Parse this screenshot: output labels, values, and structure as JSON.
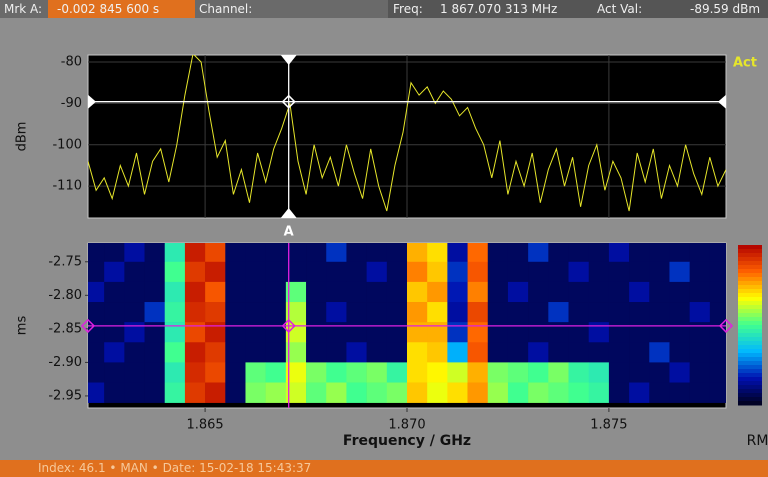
{
  "header": {
    "marker_label": "Mrk A:",
    "marker_time": "-0.002 845 600 s",
    "channel_label": "Channel:",
    "freq_label": "Freq:",
    "freq_value": "1 867.070 313 MHz",
    "act_val_label": "Act Val:",
    "act_val_value": "-89.59 dBm"
  },
  "footer": {
    "status": "Index: 46.1 • MAN • Date: 15-02-18 15:43:37"
  },
  "chart_data": [
    {
      "type": "line",
      "y_label": "dBm",
      "x": [
        1.8621,
        1.8623,
        1.8625,
        1.8627,
        1.8629,
        1.8631,
        1.8633,
        1.8635,
        1.8637,
        1.8639,
        1.8641,
        1.8643,
        1.8645,
        1.8647,
        1.8649,
        1.8651,
        1.8653,
        1.8655,
        1.8657,
        1.8659,
        1.8661,
        1.8663,
        1.8665,
        1.8667,
        1.8669,
        1.8671,
        1.8673,
        1.8675,
        1.8677,
        1.8679,
        1.8681,
        1.8683,
        1.8685,
        1.8687,
        1.8689,
        1.8691,
        1.8693,
        1.8695,
        1.8697,
        1.8699,
        1.8701,
        1.8703,
        1.8705,
        1.8707,
        1.8709,
        1.8711,
        1.8713,
        1.8715,
        1.8717,
        1.8719,
        1.8721,
        1.8723,
        1.8725,
        1.8727,
        1.8729,
        1.8731,
        1.8733,
        1.8735,
        1.8737,
        1.8739,
        1.8741,
        1.8743,
        1.8745,
        1.8747,
        1.8749,
        1.8751,
        1.8753,
        1.8755,
        1.8757,
        1.8759,
        1.8761,
        1.8763,
        1.8765,
        1.8767,
        1.8769,
        1.8771,
        1.8773,
        1.8775,
        1.8777,
        1.8779
      ],
      "series": [
        {
          "name": "Act",
          "color": "#e6e62a",
          "values": [
            -104,
            -111,
            -108,
            -113,
            -105,
            -110,
            -102,
            -112,
            -104,
            -101,
            -109,
            -100,
            -88,
            -78,
            -80,
            -92,
            -103,
            -99,
            -112,
            -106,
            -114,
            -102,
            -109,
            -101,
            -96,
            -90,
            -104,
            -112,
            -100,
            -108,
            -103,
            -110,
            -100,
            -107,
            -113,
            -101,
            -110,
            -116,
            -105,
            -97,
            -85,
            -88,
            -86,
            -90,
            -87,
            -89,
            -93,
            -91,
            -96,
            -100,
            -108,
            -99,
            -112,
            -104,
            -110,
            -102,
            -114,
            -106,
            -101,
            -110,
            -103,
            -115,
            -105,
            -100,
            -111,
            -104,
            -108,
            -116,
            -102,
            -109,
            -101,
            -113,
            -105,
            -110,
            -100,
            -107,
            -112,
            -103,
            -110,
            -106
          ]
        }
      ],
      "xlim": [
        1.8621,
        1.8779
      ],
      "xticks": [
        1.865,
        1.87,
        1.875
      ],
      "ylim": [
        -117.7,
        -78.3
      ],
      "yticks": [
        -80,
        -90,
        -100,
        -110
      ],
      "grid": true,
      "marker": {
        "label": "A",
        "x": 1.867070313,
        "y": -89.59,
        "color": "#ffffff"
      }
    },
    {
      "type": "heatmap",
      "y_label": "ms",
      "x_label": "Frequency / GHz",
      "colorbar_label": "RMS",
      "x_bins": [
        1.862,
        1.8625,
        1.863,
        1.8635,
        1.864,
        1.8645,
        1.865,
        1.8655,
        1.866,
        1.8665,
        1.867,
        1.8675,
        1.868,
        1.8685,
        1.869,
        1.8695,
        1.87,
        1.8705,
        1.871,
        1.8715,
        1.872,
        1.8725,
        1.873,
        1.8735,
        1.874,
        1.8745,
        1.875,
        1.8755,
        1.876,
        1.8765,
        1.877,
        1.8775,
        1.878
      ],
      "y_bins": [
        -2.72,
        -2.75,
        -2.78,
        -2.81,
        -2.84,
        -2.87,
        -2.9,
        -2.93,
        -2.96
      ],
      "values": [
        [
          -115,
          -115,
          -112,
          -115,
          -100,
          -80,
          -83,
          -115,
          -115,
          -115,
          -115,
          -115,
          -110,
          -115,
          -115,
          -115,
          -88,
          -90,
          -112,
          -85,
          -115,
          -115,
          -110,
          -115,
          -115,
          -115,
          -112,
          -115,
          -115,
          -115,
          -115,
          -115
        ],
        [
          -115,
          -112,
          -115,
          -115,
          -98,
          -82,
          -80,
          -115,
          -115,
          -115,
          -115,
          -115,
          -115,
          -115,
          -112,
          -115,
          -86,
          -89,
          -110,
          -84,
          -115,
          -115,
          -115,
          -115,
          -112,
          -115,
          -115,
          -115,
          -115,
          -110,
          -115,
          -115
        ],
        [
          -112,
          -115,
          -115,
          -115,
          -100,
          -80,
          -84,
          -115,
          -115,
          -115,
          -97,
          -115,
          -115,
          -115,
          -115,
          -115,
          -89,
          -87,
          -111,
          -86,
          -115,
          -112,
          -115,
          -115,
          -115,
          -115,
          -115,
          -112,
          -115,
          -115,
          -115,
          -115
        ],
        [
          -115,
          -115,
          -115,
          -110,
          -99,
          -81,
          -82,
          -115,
          -115,
          -115,
          -94,
          -115,
          -112,
          -115,
          -115,
          -115,
          -87,
          -90,
          -112,
          -83,
          -115,
          -115,
          -115,
          -110,
          -115,
          -115,
          -115,
          -115,
          -115,
          -115,
          -112,
          -115
        ],
        [
          -115,
          -115,
          -112,
          -115,
          -100,
          -83,
          -80,
          -115,
          -115,
          -115,
          -93,
          -115,
          -115,
          -115,
          -115,
          -115,
          -88,
          -88,
          -110,
          -85,
          -115,
          -115,
          -115,
          -115,
          -115,
          -112,
          -115,
          -115,
          -115,
          -115,
          -115,
          -115
        ],
        [
          -115,
          -112,
          -115,
          -115,
          -98,
          -80,
          -82,
          -115,
          -115,
          -115,
          -95,
          -115,
          -115,
          -112,
          -115,
          -115,
          -90,
          -89,
          -105,
          -84,
          -115,
          -115,
          -112,
          -115,
          -115,
          -115,
          -115,
          -115,
          -110,
          -115,
          -115,
          -115
        ],
        [
          -115,
          -115,
          -115,
          -115,
          -100,
          -81,
          -83,
          -115,
          -97,
          -98,
          -92,
          -96,
          -98,
          -97,
          -96,
          -99,
          -90,
          -91,
          -93,
          -88,
          -96,
          -97,
          -98,
          -96,
          -99,
          -100,
          -115,
          -115,
          -115,
          -112,
          -115,
          -115
        ],
        [
          -112,
          -115,
          -115,
          -115,
          -99,
          -82,
          -80,
          -115,
          -96,
          -95,
          -93,
          -97,
          -95,
          -98,
          -97,
          -96,
          -89,
          -92,
          -90,
          -87,
          -95,
          -98,
          -96,
          -97,
          -98,
          -99,
          -115,
          -112,
          -115,
          -115,
          -115,
          -115
        ]
      ],
      "clim": [
        -118,
        -78
      ],
      "colormap": [
        "#00001a",
        "#0010b0",
        "#00b8ff",
        "#40ff90",
        "#ffff00",
        "#ff6000",
        "#b00000"
      ],
      "xlim": [
        1.8621,
        1.8779
      ],
      "xticks": [
        1.865,
        {
          "value": 1.87,
          "label": "1.870"
        },
        1.875
      ],
      "ylim": [
        -2.968,
        -2.722
      ],
      "yticks": [
        -2.75,
        {
          "value": -2.8,
          "label": "-2.80"
        },
        -2.85,
        {
          "value": -2.9,
          "label": "-2.90"
        },
        -2.95
      ],
      "grid": false,
      "marker": {
        "x": 1.867070313,
        "y": -2.8456,
        "color": "#e020e0"
      }
    }
  ]
}
